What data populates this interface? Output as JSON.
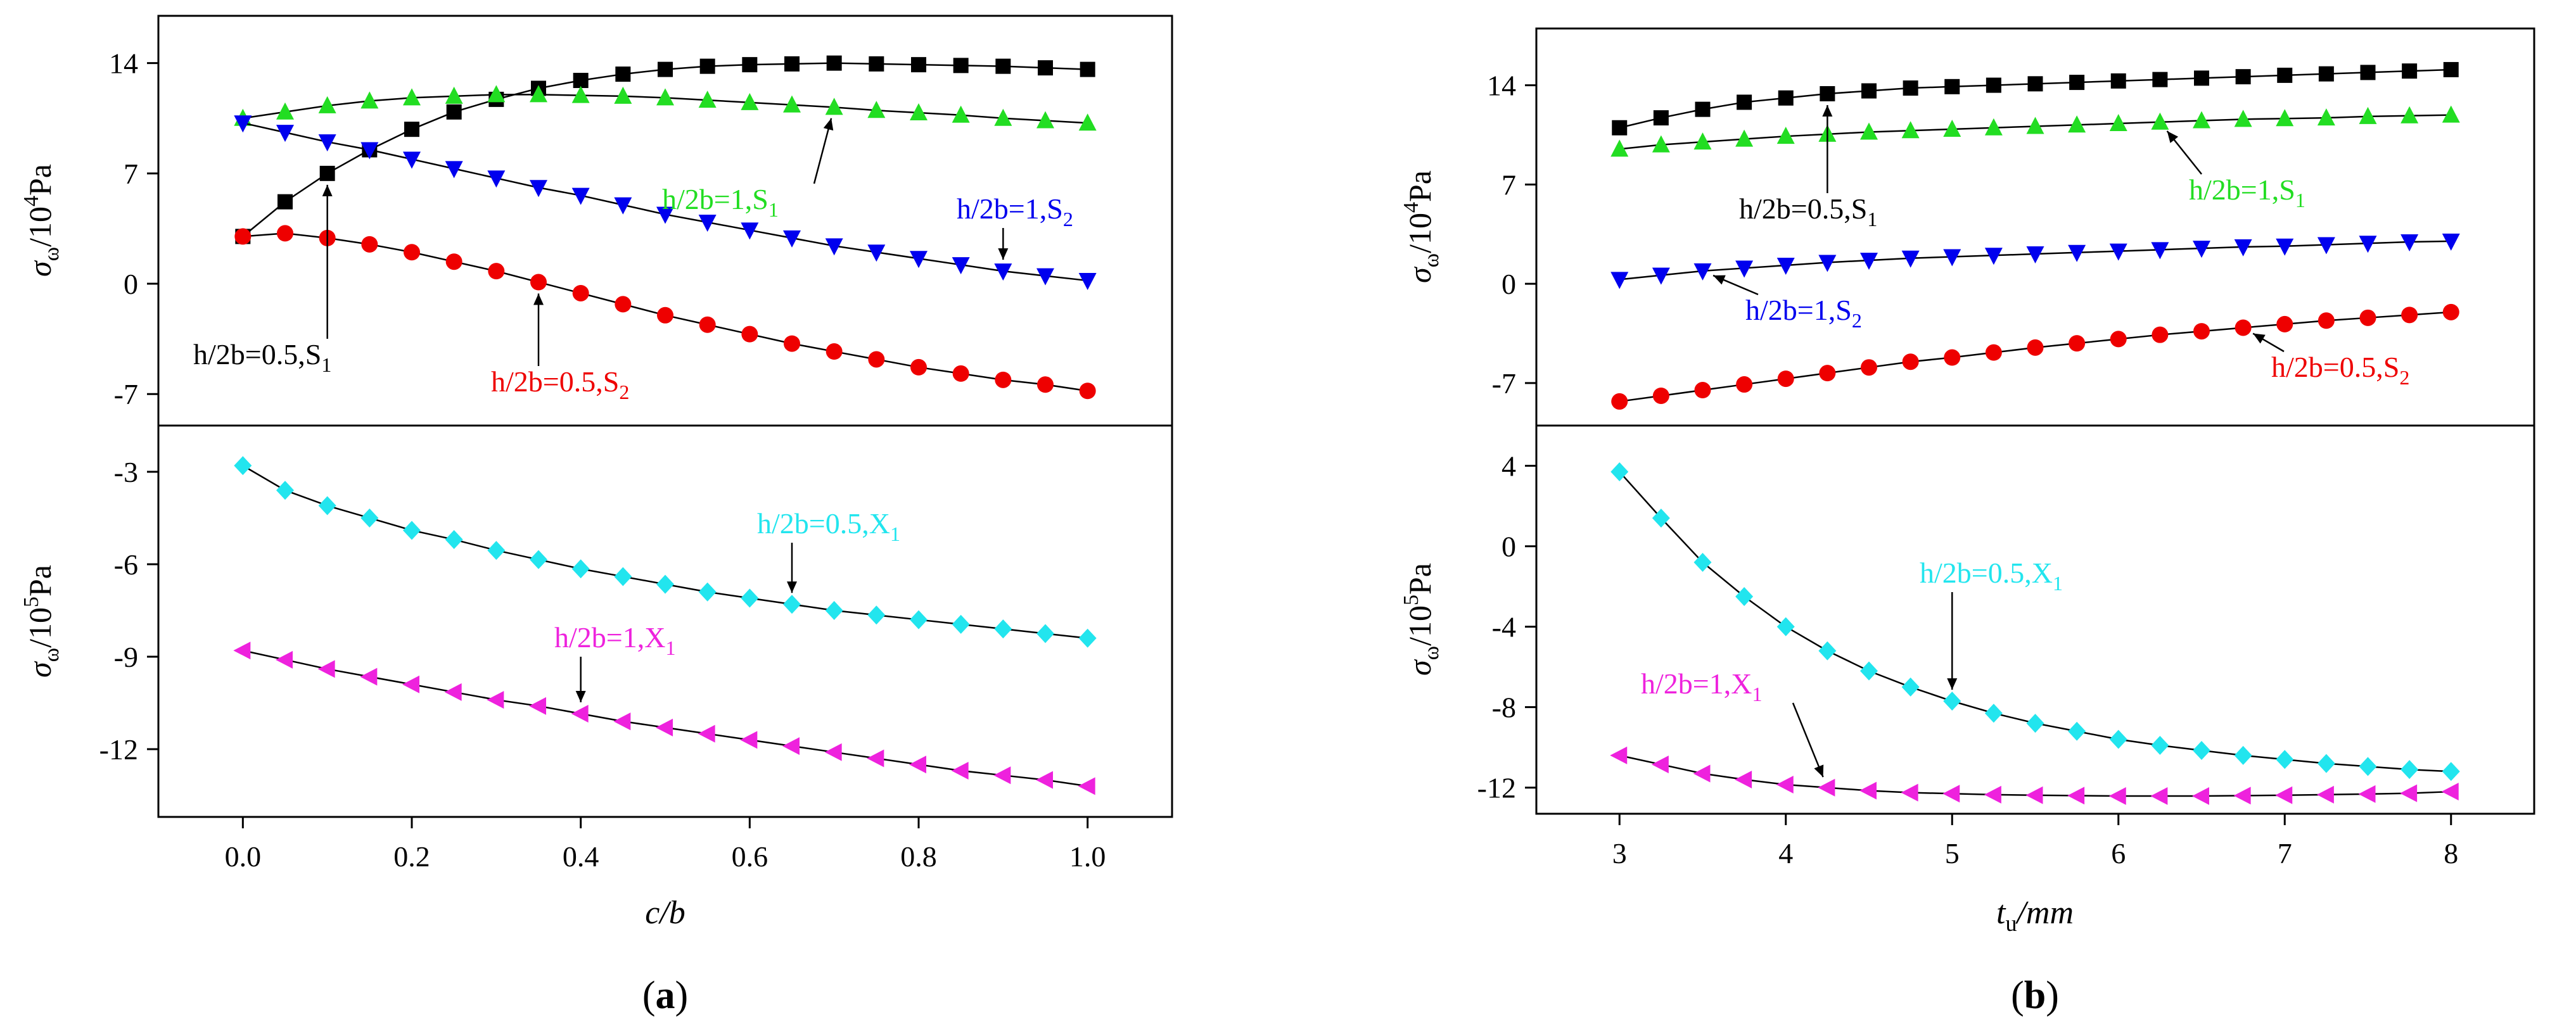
{
  "chart_data": [
    {
      "type": "line",
      "panel_label": "a",
      "xlabel": "c/b",
      "x": [
        0,
        0.05,
        0.1,
        0.15,
        0.2,
        0.25,
        0.3,
        0.35,
        0.4,
        0.45,
        0.5,
        0.55,
        0.6,
        0.65,
        0.7,
        0.75,
        0.8,
        0.85,
        0.9,
        0.95,
        1.0
      ],
      "xlim": [
        -0.1,
        1.1
      ],
      "xticks": [
        "0.0",
        "0.2",
        "0.4",
        "0.6",
        "0.8",
        "1.0"
      ],
      "xtick_values": [
        0,
        0.2,
        0.4,
        0.6,
        0.8,
        1.0
      ],
      "panels": [
        {
          "ylabel": "σ̄ω/10⁴Pa",
          "ylim": [
            -9,
            17
          ],
          "yticks": [
            "14",
            "7",
            "0",
            "-7"
          ],
          "ytick_values": [
            14,
            7,
            0,
            -7
          ],
          "series": [
            {
              "label": "h/2b=0.5,S1",
              "color": "#000000",
              "marker": "square",
              "values": [
                3.0,
                5.2,
                7.0,
                8.5,
                9.8,
                10.9,
                11.7,
                12.4,
                12.9,
                13.3,
                13.6,
                13.8,
                13.9,
                13.95,
                14.0,
                13.95,
                13.9,
                13.85,
                13.8,
                13.7,
                13.6
              ]
            },
            {
              "label": "h/2b=1,S1",
              "color": "#22dd22",
              "marker": "triangle-up",
              "values": [
                10.5,
                10.9,
                11.3,
                11.6,
                11.8,
                11.9,
                12.0,
                12.0,
                11.95,
                11.9,
                11.8,
                11.65,
                11.5,
                11.35,
                11.2,
                11.0,
                10.85,
                10.7,
                10.5,
                10.35,
                10.2
              ]
            },
            {
              "label": "h/2b=1,S2",
              "color": "#0000ee",
              "marker": "triangle-down",
              "values": [
                10.2,
                9.6,
                9.0,
                8.5,
                7.9,
                7.3,
                6.7,
                6.1,
                5.6,
                5.0,
                4.4,
                3.9,
                3.4,
                2.9,
                2.4,
                2.0,
                1.6,
                1.2,
                0.8,
                0.5,
                0.2
              ]
            },
            {
              "label": "h/2b=0.5,S2",
              "color": "#ee0000",
              "marker": "circle",
              "values": [
                3.0,
                3.2,
                2.9,
                2.5,
                2.0,
                1.4,
                0.8,
                0.1,
                -0.6,
                -1.3,
                -2.0,
                -2.6,
                -3.2,
                -3.8,
                -4.3,
                -4.8,
                -5.3,
                -5.7,
                -6.1,
                -6.4,
                -6.8
              ]
            }
          ],
          "annotations": [
            {
              "text": "h/2b=0.5,S",
              "sub": "1",
              "series": 0
            },
            {
              "text": "h/2b=1,S",
              "sub": "1",
              "series": 1
            },
            {
              "text": "h/2b=1,S",
              "sub": "2",
              "series": 2
            },
            {
              "text": "h/2b=0.5,S",
              "sub": "2",
              "series": 3
            }
          ]
        },
        {
          "ylabel": "σ̄ω/10⁵Pa",
          "ylim": [
            -14.2,
            -1.5
          ],
          "yticks": [
            "-3",
            "-6",
            "-9",
            "-12"
          ],
          "ytick_values": [
            -3,
            -6,
            -9,
            -12
          ],
          "series": [
            {
              "label": "h/2b=0.5,X1",
              "color": "#22e5ee",
              "marker": "diamond",
              "values": [
                -2.8,
                -3.6,
                -4.1,
                -4.5,
                -4.9,
                -5.2,
                -5.55,
                -5.85,
                -6.15,
                -6.4,
                -6.65,
                -6.9,
                -7.1,
                -7.3,
                -7.5,
                -7.65,
                -7.8,
                -7.95,
                -8.1,
                -8.25,
                -8.4
              ]
            },
            {
              "label": "h/2b=1,X1",
              "color": "#ee22dd",
              "marker": "triangle-left",
              "values": [
                -8.8,
                -9.1,
                -9.4,
                -9.65,
                -9.9,
                -10.15,
                -10.4,
                -10.6,
                -10.85,
                -11.1,
                -11.3,
                -11.5,
                -11.7,
                -11.9,
                -12.1,
                -12.3,
                -12.5,
                -12.7,
                -12.85,
                -13.0,
                -13.2
              ]
            }
          ],
          "annotations": [
            {
              "text": "h/2b=0.5,X",
              "sub": "1",
              "series": 0
            },
            {
              "text": "h/2b=1,X",
              "sub": "1",
              "series": 1
            }
          ]
        }
      ]
    },
    {
      "type": "line",
      "panel_label": "b",
      "xlabel": "tu/mm",
      "xlabel_main": "t",
      "xlabel_sub": "u",
      "xlabel_unit": "/mm",
      "x": [
        3,
        3.25,
        3.5,
        3.75,
        4,
        4.25,
        4.5,
        4.75,
        5,
        5.25,
        5.5,
        5.75,
        6,
        6.25,
        6.5,
        6.75,
        7,
        7.25,
        7.5,
        7.75,
        8
      ],
      "xlim": [
        2.5,
        8.5
      ],
      "xticks": [
        "3",
        "4",
        "5",
        "6",
        "7",
        "8"
      ],
      "xtick_values": [
        3,
        4,
        5,
        6,
        7,
        8
      ],
      "panels": [
        {
          "ylabel": "σ̄ω/10⁴Pa",
          "ylim": [
            -10,
            18
          ],
          "yticks": [
            "14",
            "7",
            "0",
            "-7"
          ],
          "ytick_values": [
            14,
            7,
            0,
            -7
          ],
          "series": [
            {
              "label": "h/2b=0.5,S1",
              "color": "#000000",
              "marker": "square",
              "values": [
                11.0,
                11.7,
                12.3,
                12.8,
                13.1,
                13.4,
                13.6,
                13.8,
                13.9,
                14.0,
                14.1,
                14.2,
                14.3,
                14.4,
                14.5,
                14.6,
                14.7,
                14.8,
                14.9,
                15.0,
                15.1
              ]
            },
            {
              "label": "h/2b=1,S1",
              "color": "#22dd22",
              "marker": "triangle-up",
              "values": [
                9.5,
                9.8,
                10.0,
                10.2,
                10.4,
                10.55,
                10.7,
                10.8,
                10.9,
                11.0,
                11.1,
                11.2,
                11.3,
                11.4,
                11.5,
                11.6,
                11.65,
                11.7,
                11.8,
                11.85,
                11.9
              ]
            },
            {
              "label": "h/2b=1,S2",
              "color": "#0000ee",
              "marker": "triangle-down",
              "values": [
                0.3,
                0.6,
                0.9,
                1.1,
                1.3,
                1.5,
                1.65,
                1.8,
                1.9,
                2.0,
                2.1,
                2.2,
                2.3,
                2.4,
                2.5,
                2.6,
                2.65,
                2.75,
                2.85,
                2.95,
                3.0
              ]
            },
            {
              "label": "h/2b=0.5,S2",
              "color": "#ee0000",
              "marker": "circle",
              "values": [
                -8.3,
                -7.9,
                -7.5,
                -7.1,
                -6.7,
                -6.3,
                -5.9,
                -5.5,
                -5.2,
                -4.85,
                -4.5,
                -4.2,
                -3.9,
                -3.6,
                -3.35,
                -3.1,
                -2.85,
                -2.6,
                -2.4,
                -2.2,
                -2.0
              ]
            }
          ],
          "annotations": [
            {
              "text": "h/2b=0.5,S",
              "sub": "1",
              "series": 0
            },
            {
              "text": "h/2b=1,S",
              "sub": "1",
              "series": 1
            },
            {
              "text": "h/2b=1,S",
              "sub": "2",
              "series": 2
            },
            {
              "text": "h/2b=0.5,S",
              "sub": "2",
              "series": 3
            }
          ]
        },
        {
          "ylabel": "σ̄ω/10⁵Pa",
          "ylim": [
            -13.3,
            6
          ],
          "yticks": [
            "4",
            "0",
            "-4",
            "-8",
            "-12"
          ],
          "ytick_values": [
            4,
            0,
            -4,
            -8,
            -12
          ],
          "series": [
            {
              "label": "h/2b=0.5,X1",
              "color": "#22e5ee",
              "marker": "diamond",
              "values": [
                3.7,
                1.4,
                -0.8,
                -2.5,
                -4.0,
                -5.2,
                -6.2,
                -7.0,
                -7.7,
                -8.3,
                -8.8,
                -9.2,
                -9.6,
                -9.9,
                -10.15,
                -10.4,
                -10.6,
                -10.8,
                -10.95,
                -11.1,
                -11.2
              ]
            },
            {
              "label": "h/2b=1,X1",
              "color": "#ee22dd",
              "marker": "triangle-left",
              "values": [
                -10.4,
                -10.85,
                -11.3,
                -11.6,
                -11.85,
                -12.0,
                -12.15,
                -12.25,
                -12.3,
                -12.35,
                -12.38,
                -12.4,
                -12.42,
                -12.42,
                -12.42,
                -12.4,
                -12.38,
                -12.35,
                -12.32,
                -12.28,
                -12.2
              ]
            }
          ],
          "annotations": [
            {
              "text": "h/2b=0.5,X",
              "sub": "1",
              "series": 0
            },
            {
              "text": "h/2b=1,X",
              "sub": "1",
              "series": 1
            }
          ]
        }
      ]
    }
  ]
}
